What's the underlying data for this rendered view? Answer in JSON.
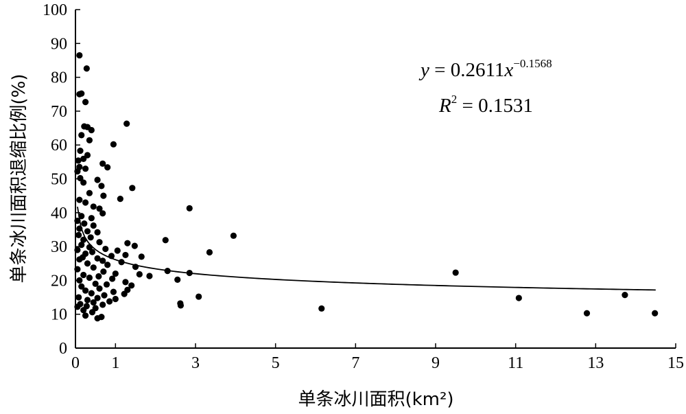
{
  "chart_data": {
    "type": "scatter",
    "xlabel": "单条冰川面积(km²)",
    "ylabel": "单条冰川面积退缩比例(%)",
    "xlim": [
      0,
      15
    ],
    "ylim": [
      0,
      100
    ],
    "x_ticks": [
      0,
      1,
      3,
      5,
      7,
      9,
      11,
      13,
      15
    ],
    "y_ticks": [
      0,
      10,
      20,
      30,
      40,
      50,
      60,
      70,
      80,
      90,
      100
    ],
    "grid": false,
    "legend": "none",
    "marker_color": "#000000",
    "annotation": {
      "equation_y": "y",
      "equation_body": " = 0.2611",
      "equation_x": "x",
      "equation_exp": "−0.1568",
      "r2_label": "R",
      "r2_exp": "2",
      "r2_value": " = 0.1531"
    },
    "trendline": {
      "type": "power",
      "coefficient": 26.11,
      "exponent": -0.1568,
      "x_range": [
        0.05,
        14.5
      ]
    },
    "series": [
      {
        "points": [
          [
            0.1,
            86.5
          ],
          [
            0.28,
            82.6
          ],
          [
            0.15,
            75.2
          ],
          [
            0.1,
            75.0
          ],
          [
            0.25,
            72.7
          ],
          [
            1.28,
            66.3
          ],
          [
            0.22,
            65.5
          ],
          [
            0.3,
            65.3
          ],
          [
            0.4,
            64.4
          ],
          [
            0.15,
            62.9
          ],
          [
            0.35,
            61.4
          ],
          [
            0.95,
            60.2
          ],
          [
            0.12,
            58.3
          ],
          [
            0.3,
            57.0
          ],
          [
            0.2,
            55.9
          ],
          [
            0.07,
            55.4
          ],
          [
            0.68,
            54.5
          ],
          [
            0.1,
            53.5
          ],
          [
            0.8,
            53.4
          ],
          [
            0.25,
            53.0
          ],
          [
            0.05,
            52.2
          ],
          [
            0.12,
            50.2
          ],
          [
            0.55,
            49.7
          ],
          [
            0.2,
            48.9
          ],
          [
            0.65,
            47.9
          ],
          [
            1.42,
            47.3
          ],
          [
            0.35,
            45.8
          ],
          [
            0.7,
            45.0
          ],
          [
            1.12,
            44.1
          ],
          [
            0.1,
            43.8
          ],
          [
            0.25,
            43.0
          ],
          [
            0.45,
            41.8
          ],
          [
            2.85,
            41.3
          ],
          [
            0.6,
            41.2
          ],
          [
            0.68,
            39.8
          ],
          [
            0.15,
            39.0
          ],
          [
            0.4,
            38.4
          ],
          [
            0.05,
            37.6
          ],
          [
            0.22,
            36.8
          ],
          [
            0.45,
            36.2
          ],
          [
            0.1,
            35.3
          ],
          [
            0.3,
            34.5
          ],
          [
            0.55,
            34.2
          ],
          [
            0.08,
            33.4
          ],
          [
            3.95,
            33.2
          ],
          [
            0.38,
            32.7
          ],
          [
            0.2,
            32.0
          ],
          [
            2.25,
            31.9
          ],
          [
            0.6,
            31.3
          ],
          [
            1.3,
            31.0
          ],
          [
            0.15,
            30.5
          ],
          [
            1.48,
            30.2
          ],
          [
            0.35,
            29.8
          ],
          [
            0.75,
            29.3
          ],
          [
            0.05,
            29.0
          ],
          [
            1.05,
            28.8
          ],
          [
            0.42,
            28.4
          ],
          [
            3.35,
            28.3
          ],
          [
            0.25,
            27.9
          ],
          [
            1.25,
            27.5
          ],
          [
            0.9,
            27.2
          ],
          [
            0.18,
            26.8
          ],
          [
            1.65,
            27.0
          ],
          [
            0.55,
            26.5
          ],
          [
            0.1,
            26.2
          ],
          [
            0.68,
            25.8
          ],
          [
            1.15,
            25.4
          ],
          [
            0.3,
            25.0
          ],
          [
            0.8,
            24.6
          ],
          [
            1.5,
            24.0
          ],
          [
            0.45,
            23.8
          ],
          [
            0.05,
            23.3
          ],
          [
            2.3,
            22.8
          ],
          [
            0.7,
            22.6
          ],
          [
            2.85,
            22.2
          ],
          [
            1.0,
            22.0
          ],
          [
            0.2,
            21.6
          ],
          [
            1.6,
            21.8
          ],
          [
            0.58,
            21.2
          ],
          [
            1.85,
            21.3
          ],
          [
            0.35,
            20.8
          ],
          [
            2.55,
            20.2
          ],
          [
            0.92,
            20.5
          ],
          [
            0.1,
            20.0
          ],
          [
            1.25,
            19.5
          ],
          [
            0.5,
            19.0
          ],
          [
            0.78,
            18.8
          ],
          [
            1.4,
            18.5
          ],
          [
            0.15,
            18.2
          ],
          [
            0.6,
            17.6
          ],
          [
            1.3,
            17.2
          ],
          [
            0.25,
            17.0
          ],
          [
            0.95,
            16.6
          ],
          [
            0.4,
            16.2
          ],
          [
            1.22,
            16.0
          ],
          [
            0.72,
            15.6
          ],
          [
            3.08,
            15.2
          ],
          [
            0.08,
            15.0
          ],
          [
            0.55,
            14.8
          ],
          [
            1.0,
            14.5
          ],
          [
            0.3,
            14.2
          ],
          [
            0.85,
            13.8
          ],
          [
            0.45,
            13.5
          ],
          [
            2.62,
            13.2
          ],
          [
            0.12,
            13.0
          ],
          [
            0.68,
            12.8
          ],
          [
            0.28,
            12.4
          ],
          [
            2.63,
            12.6
          ],
          [
            0.05,
            12.2
          ],
          [
            0.5,
            11.8
          ],
          [
            0.2,
            11.2
          ],
          [
            0.42,
            10.6
          ],
          [
            0.25,
            9.6
          ],
          [
            0.55,
            8.8
          ],
          [
            0.65,
            9.2
          ],
          [
            6.15,
            11.7
          ],
          [
            9.5,
            22.3
          ],
          [
            11.08,
            14.8
          ],
          [
            12.78,
            10.3
          ],
          [
            13.73,
            15.7
          ],
          [
            14.48,
            10.3
          ]
        ]
      }
    ]
  }
}
